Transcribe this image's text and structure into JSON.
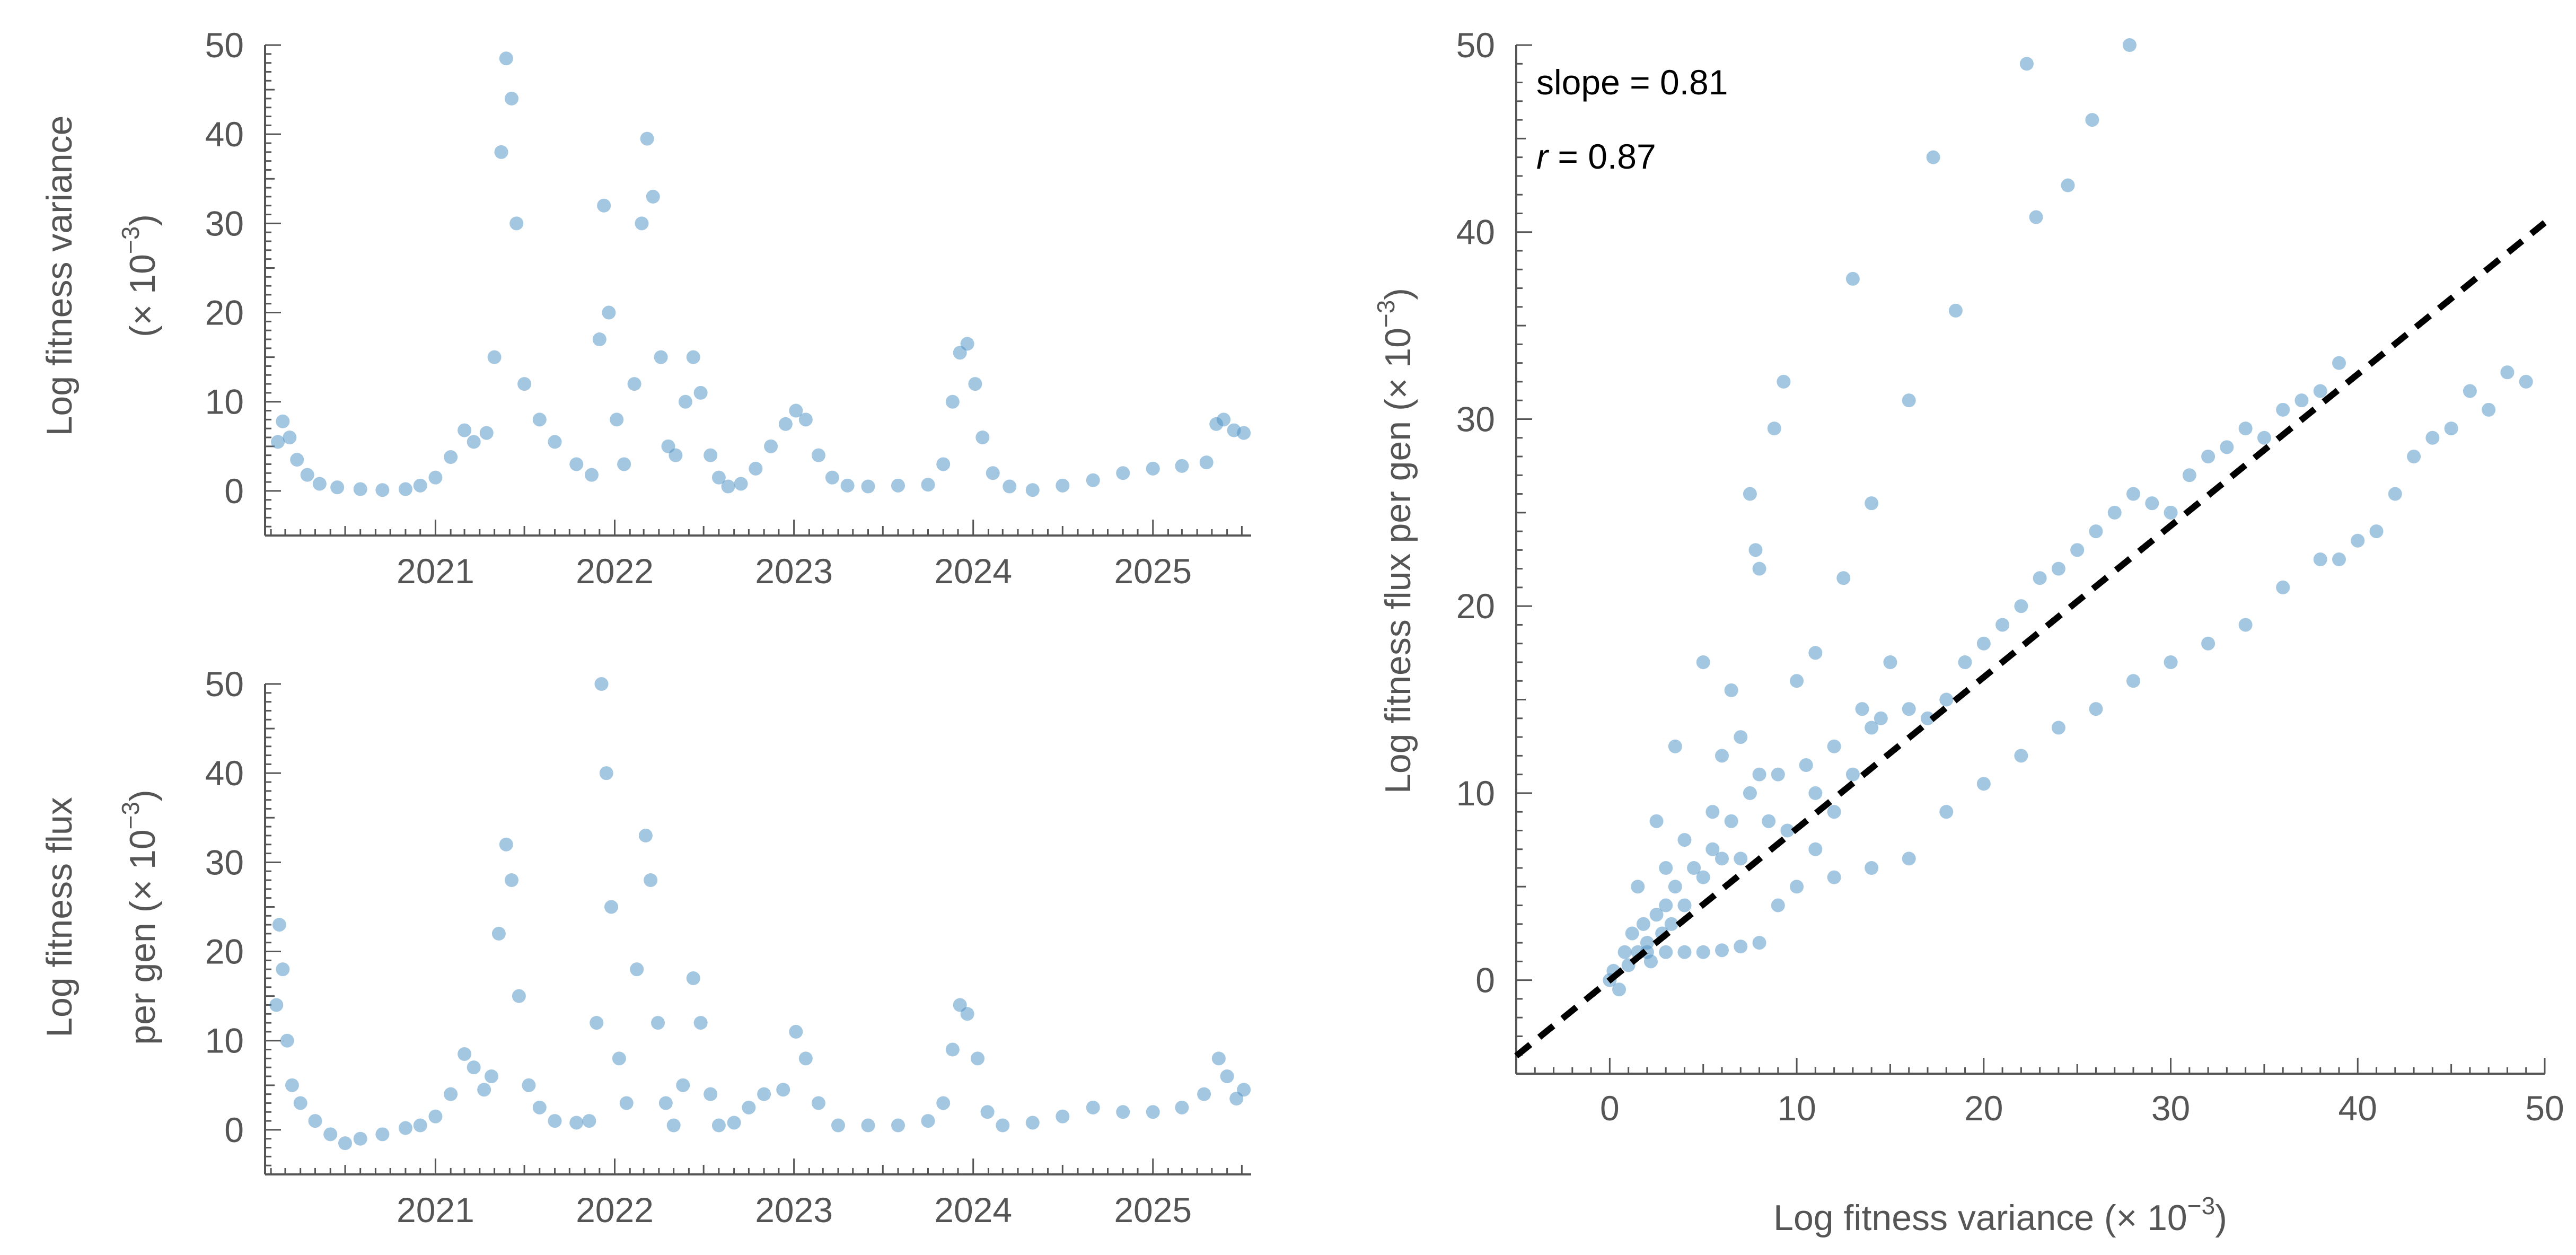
{
  "style": {
    "point_color": "#4a90c4",
    "axis_color": "#555555",
    "fit_line_color": "#000000"
  },
  "chart_data": [
    {
      "id": "variance-time",
      "type": "scatter",
      "title": "",
      "xlabel": "",
      "ylabel_lines": [
        "Log fitness variance",
        "(× 10",
        "−3",
        ")"
      ],
      "ylabel_html": {
        "line1": "Log fitness variance",
        "line2_pre": "(× 10",
        "line2_sup": "−3",
        "line2_post": ")"
      },
      "x_axis": "date",
      "xlim": [
        "2020-01-20",
        "2025-07-20"
      ],
      "ylim": [
        -5,
        50
      ],
      "yticks": [
        0,
        10,
        20,
        30,
        40,
        50
      ],
      "xticks": [
        "2021",
        "2022",
        "2023",
        "2024",
        "2025"
      ],
      "grid": false,
      "points": [
        [
          "2020-02-15",
          5.5
        ],
        [
          "2020-02-25",
          7.8
        ],
        [
          "2020-03-10",
          6.0
        ],
        [
          "2020-03-25",
          3.5
        ],
        [
          "2020-04-15",
          1.8
        ],
        [
          "2020-05-10",
          0.8
        ],
        [
          "2020-06-15",
          0.4
        ],
        [
          "2020-08-01",
          0.2
        ],
        [
          "2020-09-15",
          0.1
        ],
        [
          "2020-11-01",
          0.2
        ],
        [
          "2020-12-01",
          0.6
        ],
        [
          "2021-01-01",
          1.5
        ],
        [
          "2021-02-01",
          3.8
        ],
        [
          "2021-03-01",
          6.8
        ],
        [
          "2021-03-20",
          5.5
        ],
        [
          "2021-04-15",
          6.5
        ],
        [
          "2021-05-01",
          15.0
        ],
        [
          "2021-05-15",
          38.0
        ],
        [
          "2021-05-25",
          48.5
        ],
        [
          "2021-06-05",
          44.0
        ],
        [
          "2021-06-15",
          30.0
        ],
        [
          "2021-07-01",
          12.0
        ],
        [
          "2021-08-01",
          8.0
        ],
        [
          "2021-09-01",
          5.5
        ],
        [
          "2021-10-15",
          3.0
        ],
        [
          "2021-11-15",
          1.8
        ],
        [
          "2021-12-01",
          17.0
        ],
        [
          "2021-12-10",
          32.0
        ],
        [
          "2021-12-20",
          20.0
        ],
        [
          "2022-01-05",
          8.0
        ],
        [
          "2022-01-20",
          3.0
        ],
        [
          "2022-02-10",
          12.0
        ],
        [
          "2022-02-25",
          30.0
        ],
        [
          "2022-03-08",
          39.5
        ],
        [
          "2022-03-20",
          33.0
        ],
        [
          "2022-04-05",
          15.0
        ],
        [
          "2022-04-20",
          5.0
        ],
        [
          "2022-05-05",
          4.0
        ],
        [
          "2022-05-25",
          10.0
        ],
        [
          "2022-06-10",
          15.0
        ],
        [
          "2022-06-25",
          11.0
        ],
        [
          "2022-07-15",
          4.0
        ],
        [
          "2022-08-01",
          1.5
        ],
        [
          "2022-08-20",
          0.5
        ],
        [
          "2022-09-15",
          0.8
        ],
        [
          "2022-10-15",
          2.5
        ],
        [
          "2022-11-15",
          5.0
        ],
        [
          "2022-12-15",
          7.5
        ],
        [
          "2023-01-05",
          9.0
        ],
        [
          "2023-01-25",
          8.0
        ],
        [
          "2023-02-20",
          4.0
        ],
        [
          "2023-03-20",
          1.5
        ],
        [
          "2023-04-20",
          0.6
        ],
        [
          "2023-06-01",
          0.5
        ],
        [
          "2023-08-01",
          0.6
        ],
        [
          "2023-10-01",
          0.7
        ],
        [
          "2023-11-01",
          3.0
        ],
        [
          "2023-11-20",
          10.0
        ],
        [
          "2023-12-05",
          15.5
        ],
        [
          "2023-12-20",
          16.5
        ],
        [
          "2024-01-05",
          12.0
        ],
        [
          "2024-01-20",
          6.0
        ],
        [
          "2024-02-10",
          2.0
        ],
        [
          "2024-03-15",
          0.5
        ],
        [
          "2024-05-01",
          0.1
        ],
        [
          "2024-07-01",
          0.6
        ],
        [
          "2024-09-01",
          1.2
        ],
        [
          "2024-11-01",
          2.0
        ],
        [
          "2025-01-01",
          2.5
        ],
        [
          "2025-03-01",
          2.8
        ],
        [
          "2025-04-20",
          3.2
        ],
        [
          "2025-05-10",
          7.5
        ],
        [
          "2025-05-25",
          8.0
        ],
        [
          "2025-06-15",
          6.8
        ],
        [
          "2025-07-05",
          6.5
        ]
      ]
    },
    {
      "id": "flux-time",
      "type": "scatter",
      "title": "",
      "xlabel": "",
      "ylabel_lines": [
        "Log fitness flux",
        "per gen (× 10",
        "−3",
        ")"
      ],
      "ylabel_html": {
        "line1": "Log fitness flux",
        "line2_pre": "per gen (× 10",
        "line2_sup": "−3",
        "line2_post": ")"
      },
      "x_axis": "date",
      "xlim": [
        "2020-01-20",
        "2025-07-20"
      ],
      "ylim": [
        -5,
        50
      ],
      "yticks": [
        0,
        10,
        20,
        30,
        40,
        50
      ],
      "xticks": [
        "2021",
        "2022",
        "2023",
        "2024",
        "2025"
      ],
      "grid": false,
      "points": [
        [
          "2020-02-12",
          14.0
        ],
        [
          "2020-02-18",
          23.0
        ],
        [
          "2020-02-25",
          18.0
        ],
        [
          "2020-03-05",
          10.0
        ],
        [
          "2020-03-15",
          5.0
        ],
        [
          "2020-04-01",
          3.0
        ],
        [
          "2020-05-01",
          1.0
        ],
        [
          "2020-06-01",
          -0.5
        ],
        [
          "2020-07-01",
          -1.5
        ],
        [
          "2020-08-01",
          -1.0
        ],
        [
          "2020-09-15",
          -0.5
        ],
        [
          "2020-11-01",
          0.2
        ],
        [
          "2020-12-01",
          0.5
        ],
        [
          "2021-01-01",
          1.5
        ],
        [
          "2021-02-01",
          4.0
        ],
        [
          "2021-03-01",
          8.5
        ],
        [
          "2021-03-20",
          7.0
        ],
        [
          "2021-04-10",
          4.5
        ],
        [
          "2021-04-25",
          6.0
        ],
        [
          "2021-05-10",
          22.0
        ],
        [
          "2021-05-25",
          32.0
        ],
        [
          "2021-06-05",
          28.0
        ],
        [
          "2021-06-20",
          15.0
        ],
        [
          "2021-07-10",
          5.0
        ],
        [
          "2021-08-01",
          2.5
        ],
        [
          "2021-09-01",
          1.0
        ],
        [
          "2021-10-15",
          0.8
        ],
        [
          "2021-11-10",
          1.0
        ],
        [
          "2021-11-25",
          12.0
        ],
        [
          "2021-12-05",
          50.0
        ],
        [
          "2021-12-15",
          40.0
        ],
        [
          "2021-12-25",
          25.0
        ],
        [
          "2022-01-10",
          8.0
        ],
        [
          "2022-01-25",
          3.0
        ],
        [
          "2022-02-15",
          18.0
        ],
        [
          "2022-03-05",
          33.0
        ],
        [
          "2022-03-15",
          28.0
        ],
        [
          "2022-03-30",
          12.0
        ],
        [
          "2022-04-15",
          3.0
        ],
        [
          "2022-05-01",
          0.5
        ],
        [
          "2022-05-20",
          5.0
        ],
        [
          "2022-06-10",
          17.0
        ],
        [
          "2022-06-25",
          12.0
        ],
        [
          "2022-07-15",
          4.0
        ],
        [
          "2022-08-01",
          0.5
        ],
        [
          "2022-09-01",
          0.8
        ],
        [
          "2022-10-01",
          2.5
        ],
        [
          "2022-11-01",
          4.0
        ],
        [
          "2022-12-10",
          4.5
        ],
        [
          "2023-01-05",
          11.0
        ],
        [
          "2023-01-25",
          8.0
        ],
        [
          "2023-02-20",
          3.0
        ],
        [
          "2023-04-01",
          0.5
        ],
        [
          "2023-06-01",
          0.5
        ],
        [
          "2023-08-01",
          0.5
        ],
        [
          "2023-10-01",
          1.0
        ],
        [
          "2023-11-01",
          3.0
        ],
        [
          "2023-11-20",
          9.0
        ],
        [
          "2023-12-05",
          14.0
        ],
        [
          "2023-12-20",
          13.0
        ],
        [
          "2024-01-10",
          8.0
        ],
        [
          "2024-01-30",
          2.0
        ],
        [
          "2024-03-01",
          0.5
        ],
        [
          "2024-05-01",
          0.8
        ],
        [
          "2024-07-01",
          1.5
        ],
        [
          "2024-09-01",
          2.5
        ],
        [
          "2024-11-01",
          2.0
        ],
        [
          "2025-01-01",
          2.0
        ],
        [
          "2025-03-01",
          2.5
        ],
        [
          "2025-04-15",
          4.0
        ],
        [
          "2025-05-15",
          8.0
        ],
        [
          "2025-06-01",
          6.0
        ],
        [
          "2025-06-20",
          3.5
        ],
        [
          "2025-07-05",
          4.5
        ]
      ]
    },
    {
      "id": "flux-vs-variance",
      "type": "scatter",
      "title": "",
      "xlabel_parts": {
        "pre": "Log fitness variance (× 10",
        "sup": "−3",
        "post": ")"
      },
      "ylabel_parts": {
        "pre": "Log fitness flux per gen (× 10",
        "sup": "−3",
        "post": ")"
      },
      "xlim": [
        -5,
        50
      ],
      "ylim": [
        -5,
        50
      ],
      "xticks": [
        0,
        10,
        20,
        30,
        40,
        50
      ],
      "yticks": [
        0,
        10,
        20,
        30,
        40,
        50
      ],
      "grid": false,
      "annotations": {
        "slope": "slope = 0.81",
        "r_sym": "r",
        "r_rest": " = 0.87"
      },
      "fit_line": {
        "slope": 0.81,
        "intercept": 0.0,
        "style": "dashed"
      },
      "points": [
        [
          0,
          0
        ],
        [
          0.2,
          0.5
        ],
        [
          0.5,
          -0.5
        ],
        [
          0.8,
          1.5
        ],
        [
          1.0,
          0.8
        ],
        [
          1.2,
          2.5
        ],
        [
          1.5,
          1.5
        ],
        [
          1.8,
          3.0
        ],
        [
          2.0,
          2.0
        ],
        [
          2.2,
          1.0
        ],
        [
          2.5,
          3.5
        ],
        [
          2.8,
          2.5
        ],
        [
          3.0,
          4.0
        ],
        [
          3.3,
          3.0
        ],
        [
          3.5,
          5.0
        ],
        [
          4.0,
          4.0
        ],
        [
          4.5,
          6.0
        ],
        [
          5.0,
          5.5
        ],
        [
          5.5,
          7.0
        ],
        [
          6.0,
          6.5
        ],
        [
          6.5,
          8.5
        ],
        [
          7.0,
          6.5
        ],
        [
          7.5,
          10.0
        ],
        [
          8.0,
          11.0
        ],
        [
          2.0,
          1.5
        ],
        [
          3.0,
          1.5
        ],
        [
          4.0,
          1.5
        ],
        [
          5.0,
          1.5
        ],
        [
          6.0,
          1.6
        ],
        [
          7.0,
          1.8
        ],
        [
          8.0,
          2.0
        ],
        [
          9.0,
          4.0
        ],
        [
          10.0,
          5.0
        ],
        [
          11.0,
          7.0
        ],
        [
          12.0,
          9.0
        ],
        [
          13.0,
          11.0
        ],
        [
          14.0,
          13.5
        ],
        [
          15.0,
          17.0
        ],
        [
          16.0,
          14.5
        ],
        [
          17.0,
          14.0
        ],
        [
          18.0,
          15.0
        ],
        [
          19.0,
          17.0
        ],
        [
          20.0,
          18.0
        ],
        [
          21.0,
          19.0
        ],
        [
          22.0,
          20.0
        ],
        [
          23.0,
          21.5
        ],
        [
          24.0,
          22.0
        ],
        [
          25.0,
          23.0
        ],
        [
          26.0,
          24.0
        ],
        [
          27.0,
          25.0
        ],
        [
          28.0,
          26.0
        ],
        [
          29.0,
          25.5
        ],
        [
          30.0,
          25.0
        ],
        [
          31.0,
          27.0
        ],
        [
          32.0,
          28.0
        ],
        [
          33.0,
          28.5
        ],
        [
          34.0,
          29.5
        ],
        [
          35.0,
          29.0
        ],
        [
          36.0,
          30.5
        ],
        [
          37.0,
          31.0
        ],
        [
          38.0,
          31.5
        ],
        [
          39.0,
          33.0
        ],
        [
          12.0,
          5.5
        ],
        [
          14.0,
          6.0
        ],
        [
          16.0,
          6.5
        ],
        [
          18.0,
          9.0
        ],
        [
          20.0,
          10.5
        ],
        [
          22.0,
          12.0
        ],
        [
          24.0,
          13.5
        ],
        [
          26.0,
          14.5
        ],
        [
          28.0,
          16.0
        ],
        [
          30.0,
          17.0
        ],
        [
          32.0,
          18.0
        ],
        [
          34.0,
          19.0
        ],
        [
          36.0,
          21.0
        ],
        [
          38.0,
          22.5
        ],
        [
          39.0,
          22.5
        ],
        [
          40.0,
          23.5
        ],
        [
          41.0,
          24.0
        ],
        [
          42.0,
          26.0
        ],
        [
          43.0,
          28.0
        ],
        [
          44.0,
          29.0
        ],
        [
          45.0,
          29.5
        ],
        [
          46.0,
          31.5
        ],
        [
          47.0,
          30.5
        ],
        [
          48.0,
          32.5
        ],
        [
          49.0,
          32.0
        ],
        [
          7.8,
          23.0
        ],
        [
          8.0,
          22.0
        ],
        [
          7.5,
          26.0
        ],
        [
          8.8,
          29.5
        ],
        [
          9.3,
          32.0
        ],
        [
          13.0,
          37.5
        ],
        [
          18.5,
          35.8
        ],
        [
          17.3,
          44.0
        ],
        [
          22.3,
          49.0
        ],
        [
          22.8,
          40.8
        ],
        [
          24.5,
          42.5
        ],
        [
          25.8,
          46.0
        ],
        [
          27.8,
          50.0
        ],
        [
          16.0,
          31.0
        ],
        [
          14.0,
          25.5
        ],
        [
          12.5,
          21.5
        ],
        [
          11.0,
          17.5
        ],
        [
          10.0,
          16.0
        ],
        [
          6.5,
          15.5
        ],
        [
          5.0,
          17.0
        ],
        [
          3.5,
          12.5
        ],
        [
          6.0,
          12.0
        ],
        [
          7.0,
          13.0
        ],
        [
          9.0,
          11.0
        ],
        [
          10.5,
          11.5
        ],
        [
          4.0,
          7.5
        ],
        [
          2.5,
          8.5
        ],
        [
          1.5,
          5.0
        ],
        [
          3.0,
          6.0
        ],
        [
          5.5,
          9.0
        ],
        [
          8.5,
          8.5
        ],
        [
          9.5,
          8.0
        ],
        [
          11.0,
          10.0
        ],
        [
          12.0,
          12.5
        ],
        [
          13.5,
          14.5
        ],
        [
          14.5,
          14.0
        ]
      ]
    }
  ]
}
